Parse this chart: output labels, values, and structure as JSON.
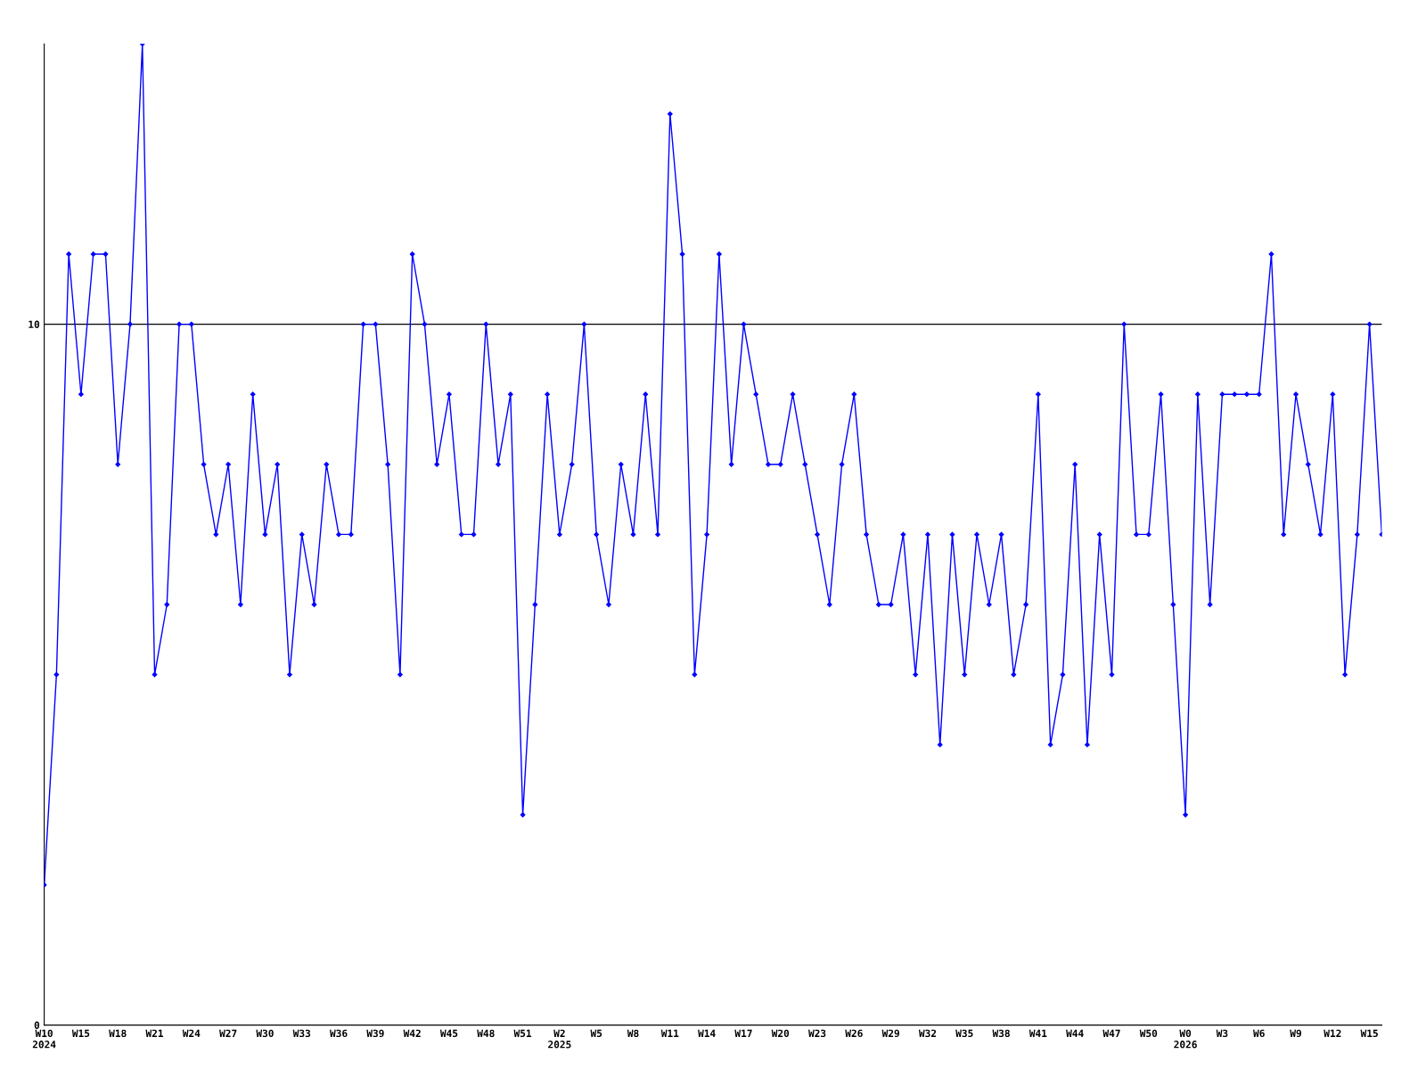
{
  "chart_data": {
    "type": "line",
    "categories": [
      "W10\n2024",
      null,
      null,
      "W15",
      null,
      null,
      "W18",
      null,
      null,
      "W21",
      null,
      null,
      "W24",
      null,
      null,
      "W27",
      null,
      null,
      "W30",
      null,
      null,
      "W33",
      null,
      null,
      "W36",
      null,
      null,
      "W39",
      null,
      null,
      "W42",
      null,
      null,
      "W45",
      null,
      null,
      "W48",
      null,
      null,
      "W51",
      null,
      null,
      "W2\n2025",
      null,
      null,
      "W5",
      null,
      null,
      "W8",
      null,
      null,
      "W11",
      null,
      null,
      "W14",
      null,
      null,
      "W17",
      null,
      null,
      "W20",
      null,
      null,
      "W23",
      null,
      null,
      "W26",
      null,
      null,
      "W29",
      null,
      null,
      "W32",
      null,
      null,
      "W35",
      null,
      null,
      "W38",
      null,
      null,
      "W41",
      null,
      null,
      "W44",
      null,
      null,
      "W47",
      null,
      null,
      "W50",
      null,
      null,
      "W0\n2026",
      null,
      null,
      "W3",
      null,
      null,
      "W6",
      null,
      null,
      "W9",
      null,
      null,
      "W12",
      null,
      null,
      "W15",
      null
    ],
    "series": [
      {
        "color": "#0000ff",
        "values": [
          2,
          5,
          11,
          9,
          11,
          11,
          8,
          10,
          14,
          5,
          6,
          10,
          10,
          8,
          7,
          8,
          6,
          9,
          7,
          8,
          5,
          7,
          6,
          8,
          7,
          7,
          10,
          10,
          8,
          5,
          11,
          10,
          8,
          9,
          7,
          7,
          10,
          8,
          9,
          3,
          6,
          9,
          7,
          8,
          10,
          7,
          6,
          8,
          7,
          9,
          7,
          13,
          11,
          5,
          7,
          11,
          8,
          10,
          9,
          8,
          8,
          9,
          8,
          7,
          6,
          8,
          9,
          7,
          6,
          6,
          7,
          5,
          7,
          4,
          7,
          5,
          7,
          6,
          7,
          5,
          6,
          9,
          4,
          5,
          8,
          4,
          7,
          5,
          10,
          7,
          7,
          9,
          6,
          3,
          9,
          6,
          9,
          9,
          9,
          9,
          11,
          7,
          9,
          8,
          7,
          9,
          5,
          7,
          10,
          7
        ]
      }
    ],
    "ylim": [
      0,
      14
    ],
    "yticks": [
      0,
      10
    ],
    "grid": "y",
    "marker": "diamond",
    "line_style": "solid"
  }
}
